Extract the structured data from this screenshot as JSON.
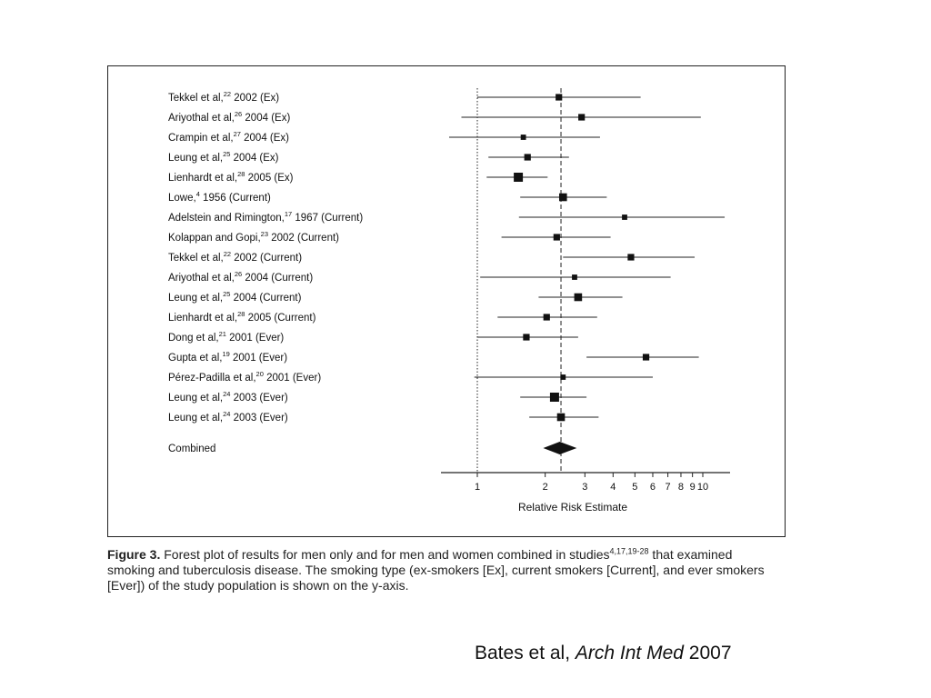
{
  "chart_data": {
    "type": "forest",
    "xlabel": "Relative Risk Estimate",
    "x_scale": "log",
    "xlim": [
      0.78,
      12.5
    ],
    "ticks": [
      {
        "value": 1,
        "label": "1"
      },
      {
        "value": 2,
        "label": "2"
      },
      {
        "value": 3,
        "label": "3"
      },
      {
        "value": 4,
        "label": "4"
      },
      {
        "value": 5,
        "label": "5"
      },
      {
        "value": 6,
        "label": "6"
      },
      {
        "value": 7,
        "label": "7"
      },
      {
        "value": 8,
        "label": "8"
      },
      {
        "value": 9,
        "label": "9"
      },
      {
        "value": 10,
        "label": "10"
      }
    ],
    "reference_line": 1,
    "pooled_line": 2.35,
    "studies": [
      {
        "name": "Tekkel et al,",
        "ref": "22",
        "rest": " 2002 (Ex)",
        "estimate": 2.3,
        "low": 1.0,
        "high": 5.3,
        "weight": 3
      },
      {
        "name": "Ariyothal et al,",
        "ref": "26",
        "rest": " 2004 (Ex)",
        "estimate": 2.9,
        "low": 0.85,
        "high": 9.8,
        "weight": 3
      },
      {
        "name": "Crampin et al,",
        "ref": "27",
        "rest": " 2004 (Ex)",
        "estimate": 1.6,
        "low": 0.75,
        "high": 3.5,
        "weight": 2
      },
      {
        "name": "Leung et al,",
        "ref": "25",
        "rest": " 2004 (Ex)",
        "estimate": 1.67,
        "low": 1.12,
        "high": 2.55,
        "weight": 3
      },
      {
        "name": "Lienhardt et al,",
        "ref": "28",
        "rest": " 2005 (Ex)",
        "estimate": 1.52,
        "low": 1.1,
        "high": 2.05,
        "weight": 5
      },
      {
        "name": "Lowe,",
        "ref": "4",
        "rest": " 1956 (Current)",
        "estimate": 2.4,
        "low": 1.55,
        "high": 3.75,
        "weight": 4
      },
      {
        "name": "Adelstein and Rimington,",
        "ref": "17",
        "rest": " 1967 (Current)",
        "estimate": 4.5,
        "low": 1.53,
        "high": 12.5,
        "weight": 2
      },
      {
        "name": "Kolappan and Gopi,",
        "ref": "23",
        "rest": " 2002 (Current)",
        "estimate": 2.25,
        "low": 1.28,
        "high": 3.9,
        "weight": 3
      },
      {
        "name": "Tekkel et al,",
        "ref": "22",
        "rest": " 2002 (Current)",
        "estimate": 4.8,
        "low": 2.4,
        "high": 9.2,
        "weight": 3
      },
      {
        "name": "Ariyothal et al,",
        "ref": "26",
        "rest": " 2004 (Current)",
        "estimate": 2.7,
        "low": 1.03,
        "high": 7.2,
        "weight": 2
      },
      {
        "name": "Leung et al,",
        "ref": "25",
        "rest": " 2004 (Current)",
        "estimate": 2.8,
        "low": 1.87,
        "high": 4.4,
        "weight": 4
      },
      {
        "name": "Lienhardt et al,",
        "ref": "28",
        "rest": " 2005 (Current)",
        "estimate": 2.03,
        "low": 1.23,
        "high": 3.4,
        "weight": 3
      },
      {
        "name": "Dong et al,",
        "ref": "21",
        "rest": " 2001 (Ever)",
        "estimate": 1.65,
        "low": 1.0,
        "high": 2.8,
        "weight": 3
      },
      {
        "name": "Gupta et al,",
        "ref": "19",
        "rest": " 2001 (Ever)",
        "estimate": 5.6,
        "low": 3.05,
        "high": 9.6,
        "weight": 3
      },
      {
        "name": "Pérez-Padilla et al,",
        "ref": "20",
        "rest": " 2001 (Ever)",
        "estimate": 2.4,
        "low": 0.97,
        "high": 6.0,
        "weight": 2
      },
      {
        "name": "Leung et al,",
        "ref": "24",
        "rest": " 2003 (Ever)",
        "estimate": 2.2,
        "low": 1.55,
        "high": 3.05,
        "weight": 5
      },
      {
        "name": "Leung et al,",
        "ref": "24",
        "rest": " 2003 (Ever)",
        "estimate": 2.35,
        "low": 1.7,
        "high": 3.45,
        "weight": 4
      }
    ],
    "combined": {
      "label": "Combined",
      "estimate": 2.32,
      "low": 1.96,
      "high": 2.76
    }
  },
  "caption": {
    "bold": "Figure 3.",
    "text1": " Forest plot of results for men only and for men and women combined in studies",
    "refs": "4,17,19-28",
    "text2": " that examined smoking and tuberculosis disease. The smoking type (ex-smokers [Ex], current smokers [Current], and ever smokers [Ever]) of the study population is shown on the y-axis."
  },
  "citation": {
    "authors": "Bates et al, ",
    "journal": "Arch Int Med",
    "year": " 2007"
  }
}
